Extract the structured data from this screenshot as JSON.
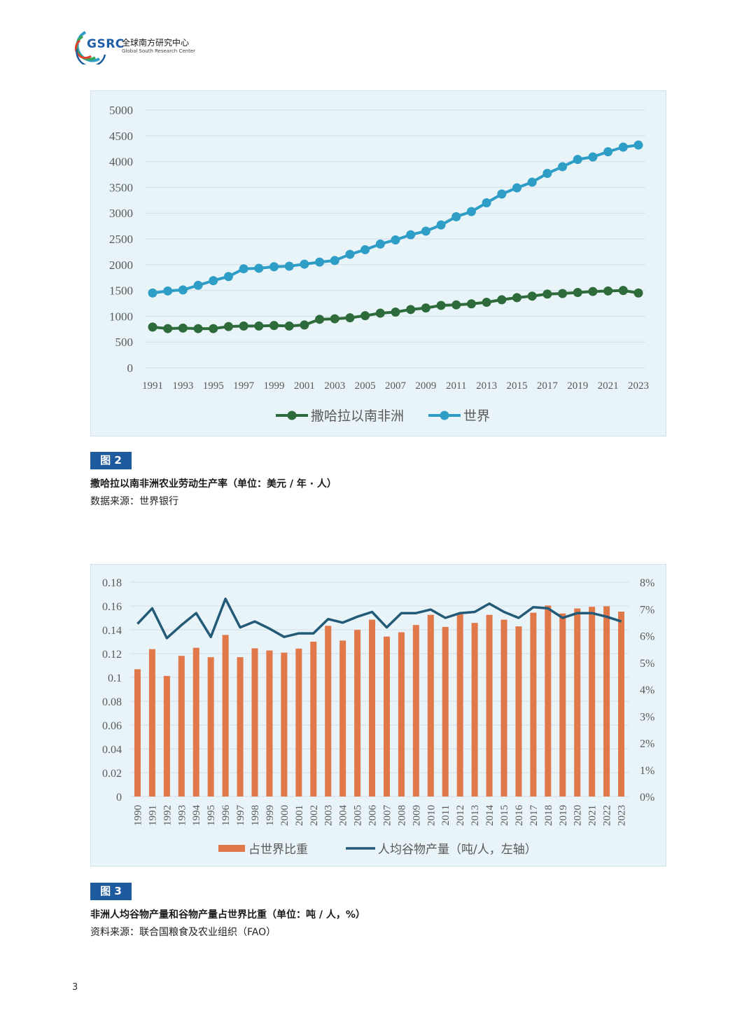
{
  "header": {
    "logo_abbr": "GSRC",
    "org_name_cn": "全球南方研究中心",
    "org_name_en": "Global South Research Center"
  },
  "figure2": {
    "badge": "图 2",
    "title": "撒哈拉以南非洲农业劳动生产率（单位：美元 / 年 · 人）",
    "source": "数据来源：世界银行",
    "chart_data": {
      "type": "line",
      "x": [
        1991,
        1992,
        1993,
        1994,
        1995,
        1996,
        1997,
        1998,
        1999,
        2000,
        2001,
        2002,
        2003,
        2004,
        2005,
        2006,
        2007,
        2008,
        2009,
        2010,
        2011,
        2012,
        2013,
        2014,
        2015,
        2016,
        2017,
        2018,
        2019,
        2020,
        2021,
        2022,
        2023
      ],
      "x_tick_labels": [
        "1991",
        "1993",
        "1995",
        "1997",
        "1999",
        "2001",
        "2003",
        "2005",
        "2007",
        "2009",
        "2011",
        "2013",
        "2015",
        "2017",
        "2019",
        "2021",
        "2023"
      ],
      "y_ticks": [
        "0",
        "500",
        "1000",
        "1500",
        "2000",
        "2500",
        "3000",
        "3500",
        "4000",
        "4500",
        "5000"
      ],
      "ylim": [
        0,
        5000
      ],
      "series": [
        {
          "name": "撒哈拉以南非洲",
          "color": "#2e6b3a",
          "values": [
            790,
            760,
            770,
            760,
            760,
            800,
            810,
            810,
            820,
            810,
            830,
            940,
            950,
            970,
            1010,
            1060,
            1080,
            1130,
            1160,
            1210,
            1220,
            1240,
            1270,
            1320,
            1360,
            1390,
            1430,
            1440,
            1460,
            1480,
            1490,
            1500,
            1450
          ]
        },
        {
          "name": "世界",
          "color": "#2e9ec7",
          "values": [
            1450,
            1490,
            1510,
            1600,
            1690,
            1770,
            1920,
            1930,
            1960,
            1970,
            2010,
            2050,
            2080,
            2200,
            2290,
            2400,
            2480,
            2580,
            2650,
            2770,
            2930,
            3030,
            3200,
            3370,
            3490,
            3600,
            3770,
            3900,
            4040,
            4090,
            4190,
            4280,
            4320
          ]
        }
      ],
      "xlabel": "",
      "ylabel": "",
      "legend_position": "bottom"
    }
  },
  "figure3": {
    "badge": "图 3",
    "title": "非洲人均谷物产量和谷物产量占世界比重（单位：吨 / 人，%）",
    "source": "资料来源：联合国粮食及农业组织（FAO）",
    "chart_data": {
      "type": "bar+line",
      "categories": [
        "1990",
        "1991",
        "1992",
        "1993",
        "1994",
        "1995",
        "1996",
        "1997",
        "1998",
        "1999",
        "2000",
        "2001",
        "2002",
        "2003",
        "2004",
        "2005",
        "2006",
        "2007",
        "2008",
        "2009",
        "2010",
        "2011",
        "2012",
        "2013",
        "2014",
        "2015",
        "2016",
        "2017",
        "2018",
        "2019",
        "2020",
        "2021",
        "2022",
        "2023"
      ],
      "left_axis_ticks": [
        "0",
        "0.02",
        "0.04",
        "0.06",
        "0.08",
        "0.1",
        "0.12",
        "0.14",
        "0.16",
        "0.18"
      ],
      "left_ylim": [
        0,
        0.18
      ],
      "right_axis_ticks": [
        "0%",
        "1%",
        "2%",
        "3%",
        "4%",
        "5%",
        "6%",
        "7%",
        "8%"
      ],
      "right_ylim": [
        0,
        8
      ],
      "series": [
        {
          "name": "占世界比重",
          "type": "bar",
          "axis": "right",
          "unit": "%",
          "color": "#e0784a",
          "values": [
            4.75,
            5.5,
            4.5,
            5.25,
            5.55,
            5.2,
            6.03,
            5.2,
            5.53,
            5.45,
            5.37,
            5.52,
            5.78,
            6.37,
            5.82,
            6.22,
            6.6,
            5.97,
            6.13,
            6.4,
            6.78,
            6.33,
            6.8,
            6.48,
            6.78,
            6.6,
            6.35,
            6.86,
            7.13,
            6.83,
            7.02,
            7.08,
            7.1,
            6.9
          ]
        },
        {
          "name": "人均谷物产量（吨/人，左轴）",
          "type": "line",
          "axis": "left",
          "unit": "吨/人",
          "color": "#235a78",
          "values": [
            0.145,
            0.158,
            0.133,
            0.144,
            0.154,
            0.134,
            0.166,
            0.142,
            0.147,
            0.141,
            0.134,
            0.137,
            0.137,
            0.149,
            0.146,
            0.151,
            0.155,
            0.142,
            0.154,
            0.154,
            0.157,
            0.15,
            0.154,
            0.155,
            0.162,
            0.155,
            0.15,
            0.159,
            0.158,
            0.15,
            0.154,
            0.154,
            0.151,
            0.147
          ]
        }
      ],
      "legend_position": "bottom"
    }
  },
  "footer": {
    "page_number": "3"
  }
}
